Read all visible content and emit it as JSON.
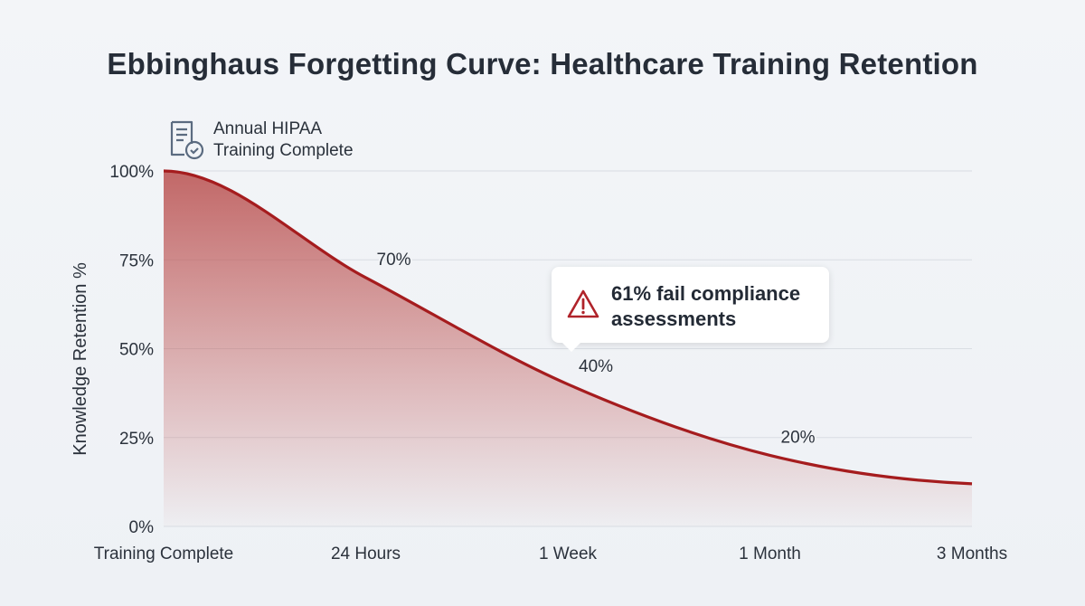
{
  "chart_data": {
    "type": "area",
    "title": "Ebbinghaus Forgetting Curve: Healthcare Training Retention",
    "ylabel": "Knowledge Retention %",
    "xlabel": "",
    "categories": [
      "Training Complete",
      "24 Hours",
      "1 Week",
      "1 Month",
      "3 Months"
    ],
    "values": [
      100,
      70,
      40,
      20,
      12
    ],
    "data_labels": [
      "",
      "70%",
      "40%",
      "20%",
      ""
    ],
    "yticks": [
      "0%",
      "25%",
      "50%",
      "75%",
      "100%"
    ],
    "ylim": [
      0,
      100
    ],
    "grid": true,
    "colors": {
      "line": "#a51c1e",
      "fill": "#c0504f"
    },
    "annotations": {
      "start": {
        "line1": "Annual HIPAA",
        "line2": "Training Complete",
        "icon": "document-check-icon"
      },
      "callout": {
        "line1": "61% fail compliance",
        "line2": "assessments",
        "icon": "warning-triangle-icon"
      }
    }
  }
}
